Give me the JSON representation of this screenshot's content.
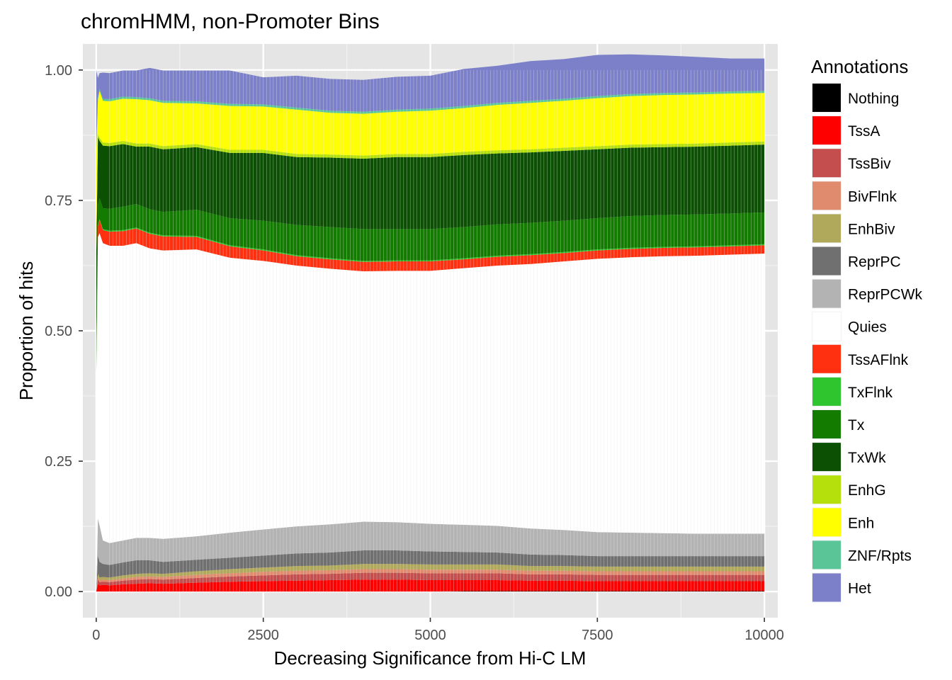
{
  "chart_data": {
    "type": "area",
    "title": "chromHMM, non-Promoter Bins",
    "xlabel": "Decreasing Significance from Hi-C LM",
    "ylabel": "Proportion of hits",
    "xlim": [
      -200,
      10200
    ],
    "ylim": [
      -0.05,
      1.05
    ],
    "x_ticks": [
      0,
      2500,
      5000,
      7500,
      10000
    ],
    "x_tick_labels": [
      "0",
      "2500",
      "5000",
      "7500",
      "10000"
    ],
    "y_ticks": [
      0,
      0.25,
      0.5,
      0.75,
      1.0
    ],
    "y_tick_labels": [
      "0.00",
      "0.25",
      "0.50",
      "0.75",
      "1.00"
    ],
    "grid": true,
    "stacked": true,
    "legend": {
      "title": "Annotations",
      "position": "right"
    },
    "x": [
      1,
      25,
      50,
      100,
      200,
      400,
      600,
      800,
      1000,
      1500,
      2000,
      2500,
      3000,
      3500,
      4000,
      4500,
      5000,
      5500,
      6000,
      6500,
      7000,
      7500,
      8000,
      8500,
      9000,
      9500,
      10000
    ],
    "series": [
      {
        "name": "Nothing",
        "color": "#000000",
        "values": [
          0,
          0,
          0,
          0,
          0,
          0,
          0,
          0,
          0,
          0,
          0,
          0,
          0,
          0,
          0,
          0,
          0,
          0.001,
          0.001,
          0.001,
          0.001,
          0.001,
          0.001,
          0.001,
          0.001,
          0.001,
          0.001
        ]
      },
      {
        "name": "TssA",
        "color": "#ff0000",
        "values": [
          0,
          0.015,
          0.012,
          0.013,
          0.012,
          0.014,
          0.015,
          0.016,
          0.015,
          0.017,
          0.019,
          0.02,
          0.021,
          0.022,
          0.023,
          0.023,
          0.022,
          0.021,
          0.021,
          0.02,
          0.02,
          0.019,
          0.019,
          0.019,
          0.019,
          0.019,
          0.019
        ]
      },
      {
        "name": "TssBiv",
        "color": "#c44d4d",
        "values": [
          0,
          0.008,
          0.006,
          0.006,
          0.006,
          0.007,
          0.008,
          0.008,
          0.008,
          0.009,
          0.01,
          0.011,
          0.012,
          0.012,
          0.013,
          0.013,
          0.013,
          0.013,
          0.013,
          0.012,
          0.012,
          0.012,
          0.012,
          0.012,
          0.012,
          0.012,
          0.012
        ]
      },
      {
        "name": "BivFlnk",
        "color": "#e08a6e",
        "values": [
          0,
          0.005,
          0.004,
          0.004,
          0.004,
          0.004,
          0.005,
          0.005,
          0.005,
          0.006,
          0.006,
          0.007,
          0.007,
          0.007,
          0.007,
          0.007,
          0.007,
          0.007,
          0.007,
          0.007,
          0.007,
          0.007,
          0.007,
          0.007,
          0.007,
          0.007,
          0.007
        ]
      },
      {
        "name": "EnhBiv",
        "color": "#b0a85a",
        "values": [
          0,
          0.006,
          0.005,
          0.005,
          0.005,
          0.006,
          0.006,
          0.006,
          0.006,
          0.007,
          0.008,
          0.008,
          0.009,
          0.009,
          0.01,
          0.01,
          0.01,
          0.01,
          0.01,
          0.009,
          0.009,
          0.009,
          0.009,
          0.009,
          0.009,
          0.009,
          0.009
        ]
      },
      {
        "name": "ReprPC",
        "color": "#707070",
        "values": [
          0,
          0.035,
          0.03,
          0.025,
          0.024,
          0.025,
          0.026,
          0.025,
          0.023,
          0.022,
          0.022,
          0.023,
          0.024,
          0.025,
          0.026,
          0.026,
          0.025,
          0.024,
          0.023,
          0.022,
          0.021,
          0.02,
          0.02,
          0.02,
          0.02,
          0.02,
          0.02
        ]
      },
      {
        "name": "ReprPCWk",
        "color": "#b3b3b3",
        "values": [
          0,
          0.071,
          0.07,
          0.045,
          0.042,
          0.042,
          0.043,
          0.043,
          0.044,
          0.045,
          0.048,
          0.05,
          0.052,
          0.054,
          0.055,
          0.054,
          0.053,
          0.052,
          0.051,
          0.05,
          0.048,
          0.046,
          0.045,
          0.044,
          0.043,
          0.043,
          0.043
        ]
      },
      {
        "name": "Quies",
        "color": "#ffffff",
        "values": [
          0.42,
          0.54,
          0.56,
          0.57,
          0.57,
          0.565,
          0.565,
          0.555,
          0.553,
          0.55,
          0.527,
          0.515,
          0.5,
          0.49,
          0.48,
          0.482,
          0.485,
          0.492,
          0.499,
          0.507,
          0.515,
          0.524,
          0.528,
          0.531,
          0.533,
          0.535,
          0.537
        ]
      },
      {
        "name": "TssAFlnk",
        "color": "#ff3010",
        "values": [
          0,
          0.02,
          0.025,
          0.025,
          0.027,
          0.028,
          0.028,
          0.028,
          0.027,
          0.024,
          0.022,
          0.02,
          0.018,
          0.018,
          0.018,
          0.018,
          0.018,
          0.017,
          0.017,
          0.017,
          0.016,
          0.016,
          0.016,
          0.016,
          0.016,
          0.016,
          0.016
        ]
      },
      {
        "name": "TxFlnk",
        "color": "#2fc52f",
        "values": [
          0,
          0.002,
          0.002,
          0.002,
          0.002,
          0.002,
          0.002,
          0.002,
          0.002,
          0.002,
          0.002,
          0.002,
          0.002,
          0.002,
          0.002,
          0.002,
          0.002,
          0.002,
          0.002,
          0.002,
          0.002,
          0.002,
          0.002,
          0.002,
          0.002,
          0.002,
          0.002
        ]
      },
      {
        "name": "Tx",
        "color": "#137b00",
        "values": [
          0.04,
          0.04,
          0.04,
          0.04,
          0.042,
          0.045,
          0.045,
          0.045,
          0.045,
          0.05,
          0.052,
          0.055,
          0.058,
          0.06,
          0.061,
          0.06,
          0.06,
          0.06,
          0.06,
          0.06,
          0.06,
          0.06,
          0.061,
          0.061,
          0.061,
          0.061,
          0.061
        ]
      },
      {
        "name": "TxWk",
        "color": "#0b5003",
        "values": [
          0.19,
          0.13,
          0.11,
          0.12,
          0.12,
          0.12,
          0.11,
          0.12,
          0.12,
          0.12,
          0.125,
          0.13,
          0.13,
          0.133,
          0.135,
          0.138,
          0.138,
          0.138,
          0.136,
          0.135,
          0.134,
          0.132,
          0.131,
          0.13,
          0.13,
          0.13,
          0.13
        ]
      },
      {
        "name": "EnhG",
        "color": "#b5e00b",
        "values": [
          0.006,
          0.006,
          0.006,
          0.006,
          0.006,
          0.006,
          0.006,
          0.006,
          0.006,
          0.006,
          0.006,
          0.006,
          0.006,
          0.006,
          0.006,
          0.006,
          0.006,
          0.006,
          0.006,
          0.006,
          0.006,
          0.006,
          0.006,
          0.006,
          0.006,
          0.006,
          0.006
        ]
      },
      {
        "name": "Enh",
        "color": "#ffff00",
        "values": [
          0.19,
          0.065,
          0.09,
          0.08,
          0.08,
          0.081,
          0.085,
          0.083,
          0.083,
          0.078,
          0.084,
          0.083,
          0.085,
          0.08,
          0.08,
          0.081,
          0.083,
          0.084,
          0.087,
          0.089,
          0.09,
          0.092,
          0.093,
          0.094,
          0.094,
          0.094,
          0.093
        ]
      },
      {
        "name": "ZNF/Rpts",
        "color": "#5ac597",
        "values": [
          0.004,
          0.004,
          0.004,
          0.004,
          0.004,
          0.004,
          0.004,
          0.004,
          0.004,
          0.004,
          0.004,
          0.004,
          0.004,
          0.004,
          0.004,
          0.004,
          0.004,
          0.004,
          0.004,
          0.004,
          0.004,
          0.004,
          0.004,
          0.004,
          0.004,
          0.004,
          0.004
        ]
      },
      {
        "name": "Het",
        "color": "#7b80c8",
        "values": [
          0.15,
          0.038,
          0.03,
          0.05,
          0.05,
          0.05,
          0.051,
          0.058,
          0.058,
          0.059,
          0.064,
          0.052,
          0.061,
          0.061,
          0.061,
          0.063,
          0.063,
          0.071,
          0.071,
          0.076,
          0.076,
          0.079,
          0.076,
          0.072,
          0.068,
          0.063,
          0.062
        ]
      }
    ]
  }
}
